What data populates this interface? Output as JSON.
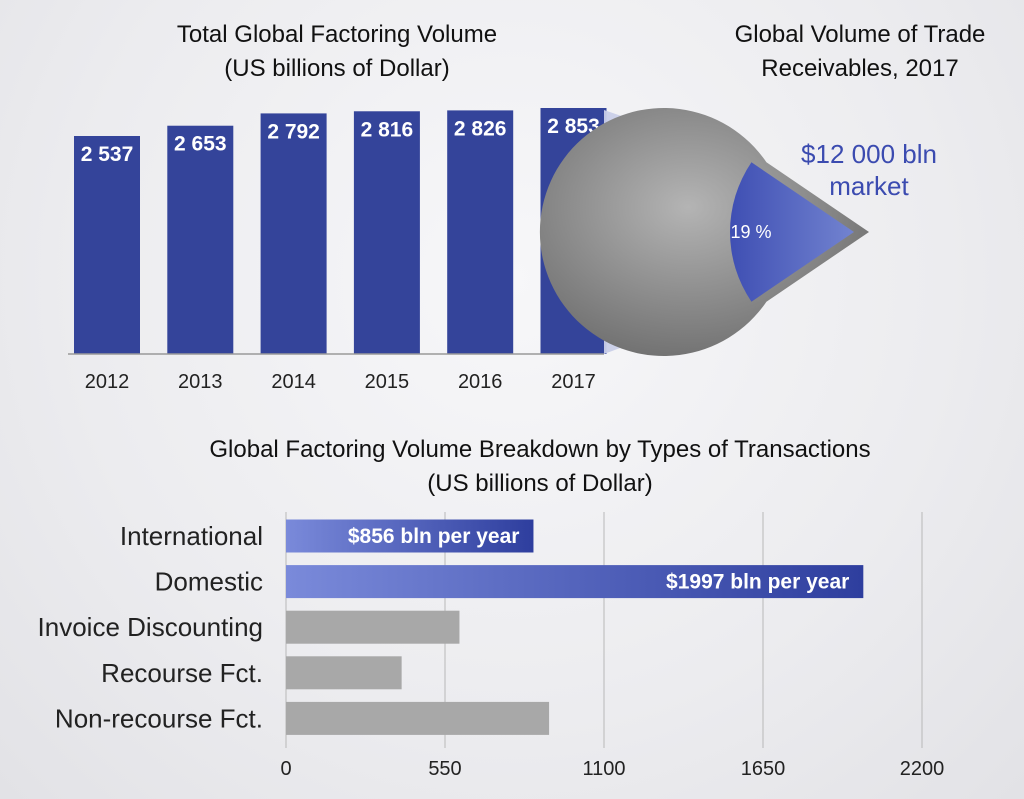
{
  "chart_data": [
    {
      "type": "bar",
      "title": "Total Global Factoring Volume",
      "subtitle": "(US billions of Dollar)",
      "categories": [
        "2012",
        "2013",
        "2014",
        "2015",
        "2016",
        "2017"
      ],
      "values": [
        2537,
        2653,
        2792,
        2816,
        2826,
        2853
      ],
      "value_labels": [
        "2 537",
        "2 653",
        "2 792",
        "2 816",
        "2 826",
        "2 853"
      ],
      "bar_color": "#34449a"
    },
    {
      "type": "pie",
      "title": "Global Volume of Trade",
      "title_line2": "Receivables, 2017",
      "label": "$12 000 bln",
      "label_line2": "market",
      "slices": [
        {
          "value": 19,
          "label": "19 %",
          "color": "#3b4bb0"
        },
        {
          "value": 81,
          "color": "#7a7a7a"
        }
      ]
    },
    {
      "type": "bar",
      "orientation": "horizontal",
      "title": "Global Factoring Volume Breakdown by Types of Transactions",
      "subtitle": "(US billions of Dollar)",
      "categories": [
        "International",
        "Domestic",
        "Invoice Discounting",
        "Recourse Fct.",
        "Non-recourse Fct."
      ],
      "values": [
        856,
        1997,
        600,
        400,
        910
      ],
      "value_labels": [
        "$856 bln per year",
        "$1997 bln per year",
        "",
        "",
        ""
      ],
      "highlight": [
        true,
        true,
        false,
        false,
        false
      ],
      "xticks": [
        "0",
        "550",
        "1100",
        "1650",
        "2200"
      ],
      "xlim": [
        0,
        2200
      ],
      "grid": true,
      "highlight_color": "#3b4bb0",
      "muted_color": "#a8a8a8"
    }
  ]
}
